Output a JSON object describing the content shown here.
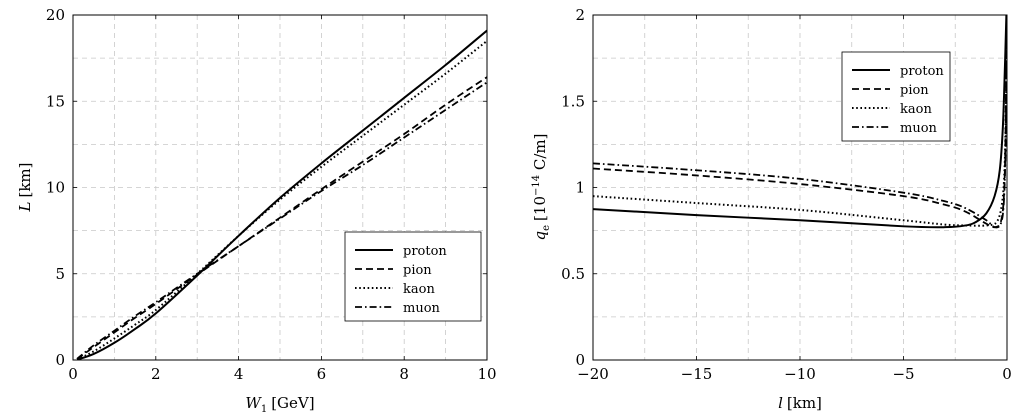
{
  "chart_data": [
    {
      "type": "line",
      "title": "",
      "xlabel": "W",
      "xlabel_sub": "1",
      "xlabel_unit": "[GeV]",
      "ylabel": "L",
      "ylabel_unit": "[km]",
      "xlim": [
        0,
        10
      ],
      "ylim": [
        0,
        20
      ],
      "xticks": [
        "0",
        "2",
        "4",
        "6",
        "8",
        "10"
      ],
      "yticks": [
        "0",
        "5",
        "10",
        "15",
        "20"
      ],
      "xtick_values": [
        0,
        2,
        4,
        6,
        8,
        10
      ],
      "ytick_values": [
        0,
        5,
        10,
        15,
        20
      ],
      "grid": true,
      "legend_position": "bottom-right",
      "series": [
        {
          "name": "proton",
          "style": "solid",
          "points": [
            [
              0.1,
              0.02
            ],
            [
              0.5,
              0.35
            ],
            [
              1,
              1.0
            ],
            [
              1.5,
              1.8
            ],
            [
              2,
              2.7
            ],
            [
              3,
              4.9
            ],
            [
              4,
              7.2
            ],
            [
              5,
              9.4
            ],
            [
              6,
              11.4
            ],
            [
              7,
              13.3
            ],
            [
              8,
              15.2
            ],
            [
              9,
              17.1
            ],
            [
              10,
              19.1
            ]
          ]
        },
        {
          "name": "pion",
          "style": "dashed",
          "points": [
            [
              0.1,
              0.06
            ],
            [
              0.5,
              0.75
            ],
            [
              1,
              1.6
            ],
            [
              1.5,
              2.45
            ],
            [
              2,
              3.25
            ],
            [
              3,
              4.95
            ],
            [
              4,
              6.6
            ],
            [
              5,
              8.25
            ],
            [
              6,
              9.9
            ],
            [
              7,
              11.5
            ],
            [
              8,
              13.1
            ],
            [
              9,
              14.8
            ],
            [
              10,
              16.4
            ]
          ]
        },
        {
          "name": "kaon",
          "style": "dotted",
          "points": [
            [
              0.1,
              0.03
            ],
            [
              0.5,
              0.5
            ],
            [
              1,
              1.25
            ],
            [
              1.5,
              2.05
            ],
            [
              2,
              2.9
            ],
            [
              3,
              5.0
            ],
            [
              4,
              7.2
            ],
            [
              5,
              9.3
            ],
            [
              6,
              11.2
            ],
            [
              7,
              13.0
            ],
            [
              8,
              14.8
            ],
            [
              9,
              16.6
            ],
            [
              10,
              18.5
            ]
          ]
        },
        {
          "name": "muon",
          "style": "dashdot",
          "points": [
            [
              0.1,
              0.07
            ],
            [
              0.5,
              0.85
            ],
            [
              1,
              1.7
            ],
            [
              1.5,
              2.55
            ],
            [
              2,
              3.35
            ],
            [
              3,
              5.0
            ],
            [
              4,
              6.6
            ],
            [
              5,
              8.2
            ],
            [
              6,
              9.8
            ],
            [
              7,
              11.3
            ],
            [
              8,
              12.9
            ],
            [
              9,
              14.5
            ],
            [
              10,
              16.1
            ]
          ]
        }
      ]
    },
    {
      "type": "line",
      "title": "",
      "xlabel": "l",
      "xlabel_unit": "[km]",
      "ylabel": "q",
      "ylabel_sub": "e",
      "ylabel_unit_pre": "[10",
      "ylabel_unit_exp": "−14",
      "ylabel_unit_post": " C/m]",
      "xlim": [
        -20,
        0
      ],
      "ylim": [
        0,
        2
      ],
      "xticks": [
        "−20",
        "−15",
        "−10",
        "−5",
        "0"
      ],
      "yticks": [
        "0",
        "0.5",
        "1",
        "1.5",
        "2"
      ],
      "xtick_values": [
        -20,
        -15,
        -10,
        -5,
        0
      ],
      "ytick_values": [
        0,
        0.5,
        1,
        1.5,
        2
      ],
      "grid": true,
      "legend_position": "top-right",
      "series": [
        {
          "name": "proton",
          "style": "solid",
          "points": [
            [
              -20,
              0.875
            ],
            [
              -15,
              0.84
            ],
            [
              -10,
              0.81
            ],
            [
              -5,
              0.775
            ],
            [
              -3,
              0.77
            ],
            [
              -2,
              0.78
            ],
            [
              -1.5,
              0.8
            ],
            [
              -1,
              0.85
            ],
            [
              -0.6,
              0.95
            ],
            [
              -0.35,
              1.1
            ],
            [
              -0.2,
              1.35
            ],
            [
              -0.1,
              1.7
            ],
            [
              -0.03,
              2.0
            ]
          ]
        },
        {
          "name": "pion",
          "style": "dashed",
          "points": [
            [
              -20,
              1.11
            ],
            [
              -15,
              1.07
            ],
            [
              -10,
              1.02
            ],
            [
              -5,
              0.95
            ],
            [
              -3,
              0.9
            ],
            [
              -2,
              0.86
            ],
            [
              -1,
              0.79
            ],
            [
              -0.6,
              0.77
            ],
            [
              -0.3,
              0.8
            ],
            [
              -0.15,
              0.95
            ],
            [
              -0.07,
              1.3
            ],
            [
              -0.02,
              2.0
            ]
          ]
        },
        {
          "name": "kaon",
          "style": "dotted",
          "points": [
            [
              -20,
              0.95
            ],
            [
              -15,
              0.91
            ],
            [
              -10,
              0.87
            ],
            [
              -5,
              0.81
            ],
            [
              -3,
              0.785
            ],
            [
              -2,
              0.78
            ],
            [
              -1,
              0.78
            ],
            [
              -0.5,
              0.8
            ],
            [
              -0.25,
              0.9
            ],
            [
              -0.12,
              1.1
            ],
            [
              -0.05,
              1.5
            ],
            [
              -0.01,
              2.0
            ]
          ]
        },
        {
          "name": "muon",
          "style": "dashdot",
          "points": [
            [
              -20,
              1.14
            ],
            [
              -15,
              1.1
            ],
            [
              -10,
              1.05
            ],
            [
              -5,
              0.97
            ],
            [
              -3,
              0.92
            ],
            [
              -2,
              0.88
            ],
            [
              -1,
              0.81
            ],
            [
              -0.6,
              0.77
            ],
            [
              -0.3,
              0.79
            ],
            [
              -0.15,
              0.92
            ],
            [
              -0.06,
              1.3
            ],
            [
              -0.015,
              2.0
            ]
          ]
        }
      ]
    }
  ]
}
